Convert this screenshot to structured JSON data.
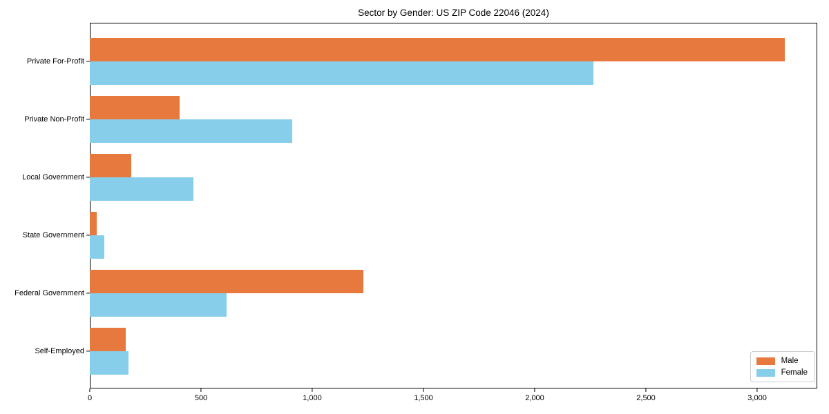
{
  "chart_data": {
    "type": "bar",
    "orientation": "horizontal",
    "title": "Sector by Gender: US ZIP Code 22046 (2024)",
    "categories": [
      "Private For-Profit",
      "Private Non-Profit",
      "Local Government",
      "State Government",
      "Federal Government",
      "Self-Employed"
    ],
    "series": [
      {
        "name": "Male",
        "color": "#e8793e",
        "values": [
          3125,
          405,
          185,
          30,
          1230,
          160
        ]
      },
      {
        "name": "Female",
        "color": "#87ceeb",
        "values": [
          2265,
          910,
          465,
          65,
          615,
          175
        ]
      }
    ],
    "xlim": [
      0,
      3270
    ],
    "x_ticks": [
      {
        "value": 0,
        "label": "0"
      },
      {
        "value": 500,
        "label": "500"
      },
      {
        "value": 1000,
        "label": "1,000"
      },
      {
        "value": 1500,
        "label": "1,500"
      },
      {
        "value": 2000,
        "label": "2,000"
      },
      {
        "value": 2500,
        "label": "2,500"
      },
      {
        "value": 3000,
        "label": "3,000"
      }
    ],
    "xlabel": "",
    "ylabel": "",
    "grid": false,
    "legend": {
      "position": "lower right"
    }
  }
}
